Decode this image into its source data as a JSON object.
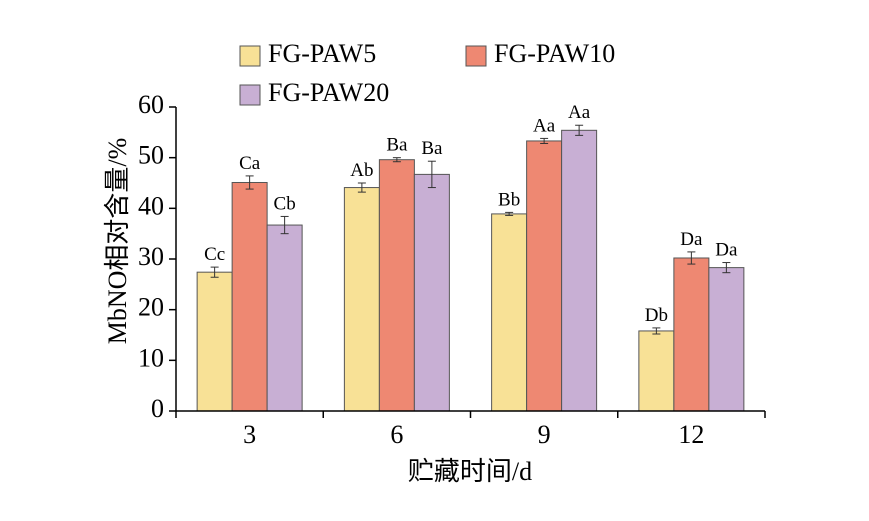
{
  "chart_data": {
    "type": "bar",
    "categories": [
      "3",
      "6",
      "9",
      "12"
    ],
    "xlabel": "贮藏时间/d",
    "ylabel": "MbNO相对含量/%",
    "ylim": [
      0,
      60
    ],
    "yticks": [
      "0",
      "10",
      "20",
      "30",
      "40",
      "50",
      "60"
    ],
    "grid": false,
    "legend_position": "top",
    "series": [
      {
        "name": "FG-PAW5",
        "color": "#f8e196",
        "values": [
          27.4,
          44.1,
          38.9,
          15.8
        ],
        "errors": [
          1.0,
          0.9,
          0.3,
          0.6
        ],
        "labels": [
          "Cc",
          "Ab",
          "Bb",
          "Db"
        ]
      },
      {
        "name": "FG-PAW10",
        "color": "#ee8872",
        "values": [
          45.1,
          49.6,
          53.3,
          30.2
        ],
        "errors": [
          1.3,
          0.4,
          0.5,
          1.2
        ],
        "labels": [
          "Ca",
          "Ba",
          "Aa",
          "Da"
        ]
      },
      {
        "name": "FG-PAW20",
        "color": "#c8afd4",
        "values": [
          36.7,
          46.7,
          55.4,
          28.3
        ],
        "errors": [
          1.7,
          2.6,
          1.0,
          1.0
        ],
        "labels": [
          "Cb",
          "Ba",
          "Aa",
          "Da"
        ]
      }
    ]
  }
}
